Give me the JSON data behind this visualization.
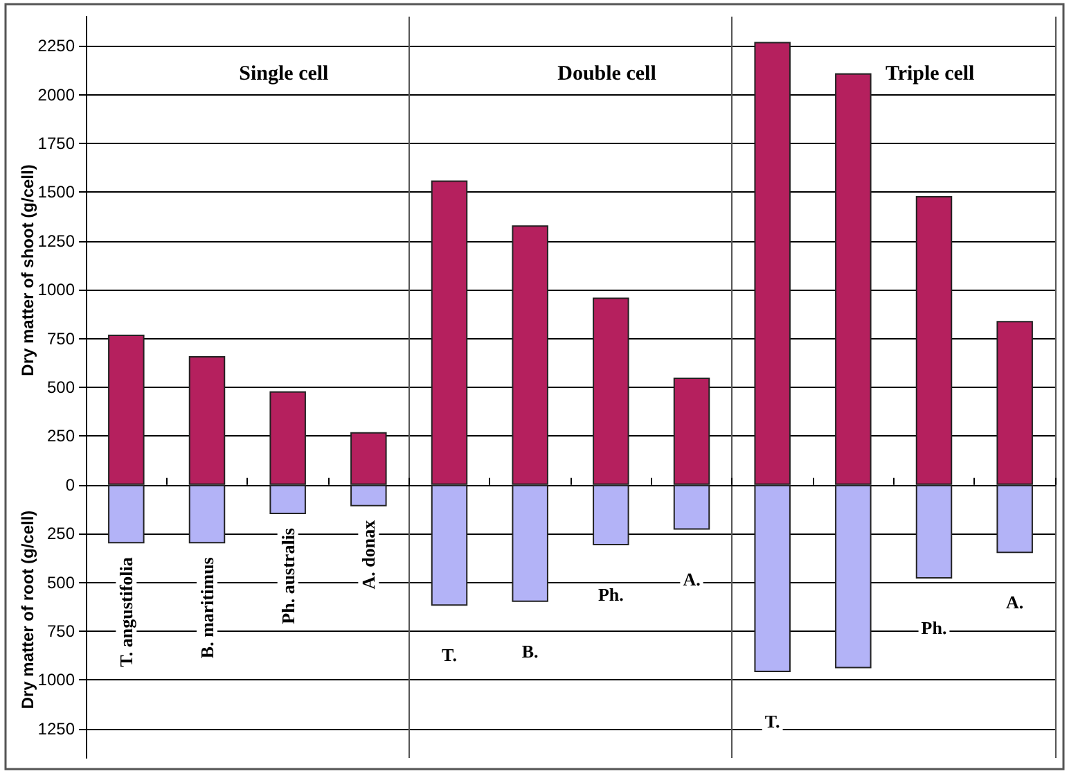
{
  "chart_data": {
    "type": "bar",
    "ylabel": "Dry matter of shoot (g/cell)",
    "annotations": [
      "Single cell",
      "Double cell",
      "Triple cell",
      "Dry matter of root (g/cell)"
    ],
    "categories": [
      "T. angustifolia",
      "B. maritimus",
      "Ph. australis",
      "A. donax",
      "T.",
      "B.",
      "Ph.",
      "A.",
      "T.",
      null,
      "Ph.",
      "A."
    ],
    "series": [
      {
        "color": "#b5205e",
        "values": [
          770,
          660,
          480,
          270,
          1560,
          1330,
          960,
          550,
          2270,
          2110,
          1480,
          840
        ]
      },
      {
        "color": "#b3b3f7",
        "values": [
          -300,
          -300,
          -150,
          -110,
          -620,
          -600,
          -310,
          -230,
          -960,
          -940,
          -480,
          -350
        ]
      }
    ],
    "stacked": true,
    "ylim": [
      -1400,
      2400
    ],
    "yticks": [
      {
        "value": -1250,
        "label": "1250"
      },
      {
        "value": -1000,
        "label": "1000"
      },
      {
        "value": -750,
        "label": "750"
      },
      {
        "value": -500,
        "label": "500"
      },
      {
        "value": -250,
        "label": "250"
      },
      0,
      250,
      500,
      750,
      1000,
      1250,
      1500,
      1750,
      2000,
      2250
    ],
    "grid": "y"
  }
}
